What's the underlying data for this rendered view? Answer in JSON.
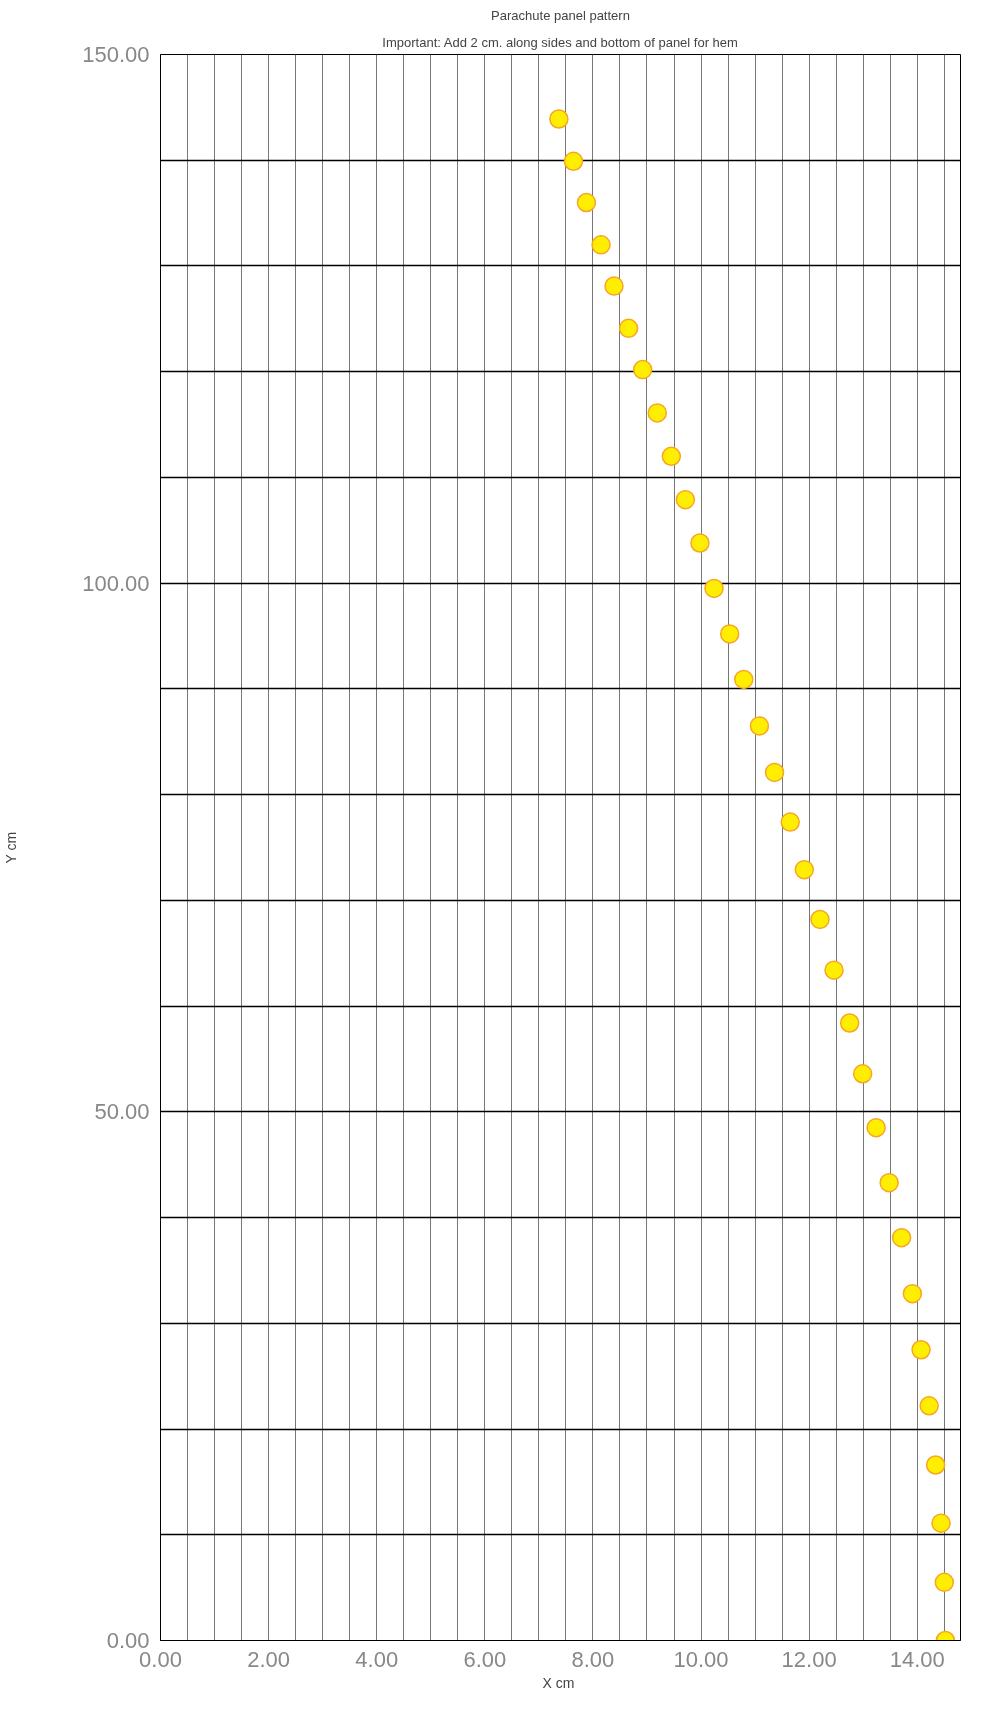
{
  "chart_data": {
    "type": "scatter",
    "title": "Parachute panel pattern",
    "subtitle": "Important: Add 2 cm. along sides and bottom of panel for hem",
    "xlabel": "X  cm",
    "ylabel": "Y cm",
    "x": [
      7.37,
      7.64,
      7.88,
      8.15,
      8.39,
      8.66,
      8.92,
      9.19,
      9.45,
      9.71,
      9.98,
      10.24,
      10.53,
      10.79,
      11.08,
      11.36,
      11.65,
      11.91,
      12.2,
      12.46,
      12.75,
      12.99,
      13.24,
      13.48,
      13.71,
      13.91,
      14.07,
      14.22,
      14.34,
      14.44,
      14.5,
      14.52
    ],
    "series": [
      {
        "color": "#ffee00",
        "values": [
          143.9,
          139.9,
          136.0,
          132.0,
          128.1,
          124.1,
          120.2,
          116.1,
          112.0,
          107.9,
          103.8,
          99.5,
          95.2,
          90.9,
          86.5,
          82.1,
          77.4,
          72.9,
          68.2,
          63.4,
          58.4,
          53.6,
          48.5,
          43.3,
          38.1,
          32.8,
          27.5,
          22.2,
          16.6,
          11.1,
          5.5,
          0
        ]
      }
    ],
    "marker": "circle",
    "grid": true,
    "xlim": [
      0,
      14.8
    ],
    "ylim": [
      0,
      150
    ],
    "xticks": [
      {
        "value": 0,
        "label": "0.00"
      },
      {
        "value": 0.5,
        "label": null
      },
      {
        "value": 1,
        "label": null
      },
      {
        "value": 1.5,
        "label": null
      },
      {
        "value": 2,
        "label": "2.00"
      },
      {
        "value": 2.5,
        "label": null
      },
      {
        "value": 3,
        "label": null
      },
      {
        "value": 3.5,
        "label": null
      },
      {
        "value": 4,
        "label": "4.00"
      },
      {
        "value": 4.5,
        "label": null
      },
      {
        "value": 5,
        "label": null
      },
      {
        "value": 5.5,
        "label": null
      },
      {
        "value": 6,
        "label": "6.00"
      },
      {
        "value": 6.5,
        "label": null
      },
      {
        "value": 7,
        "label": null
      },
      {
        "value": 7.5,
        "label": null
      },
      {
        "value": 8,
        "label": "8.00"
      },
      {
        "value": 8.5,
        "label": null
      },
      {
        "value": 9,
        "label": null
      },
      {
        "value": 9.5,
        "label": null
      },
      {
        "value": 10,
        "label": "10.00"
      },
      {
        "value": 10.5,
        "label": null
      },
      {
        "value": 11,
        "label": null
      },
      {
        "value": 11.5,
        "label": null
      },
      {
        "value": 12,
        "label": "12.00"
      },
      {
        "value": 12.5,
        "label": null
      },
      {
        "value": 13,
        "label": null
      },
      {
        "value": 13.5,
        "label": null
      },
      {
        "value": 14,
        "label": "14.00"
      },
      {
        "value": 14.5,
        "label": null
      }
    ],
    "yticks": [
      {
        "value": 0,
        "label": "0.00"
      },
      {
        "value": 10,
        "label": null
      },
      {
        "value": 20,
        "label": null
      },
      {
        "value": 30,
        "label": null
      },
      {
        "value": 40,
        "label": null
      },
      {
        "value": 50,
        "label": "50.00"
      },
      {
        "value": 60,
        "label": null
      },
      {
        "value": 70,
        "label": null
      },
      {
        "value": 80,
        "label": null
      },
      {
        "value": 90,
        "label": null
      },
      {
        "value": 100,
        "label": "100.00"
      },
      {
        "value": 110,
        "label": null
      },
      {
        "value": 120,
        "label": null
      },
      {
        "value": 130,
        "label": null
      },
      {
        "value": 140,
        "label": null
      },
      {
        "value": 150,
        "label": "150.00"
      }
    ]
  }
}
